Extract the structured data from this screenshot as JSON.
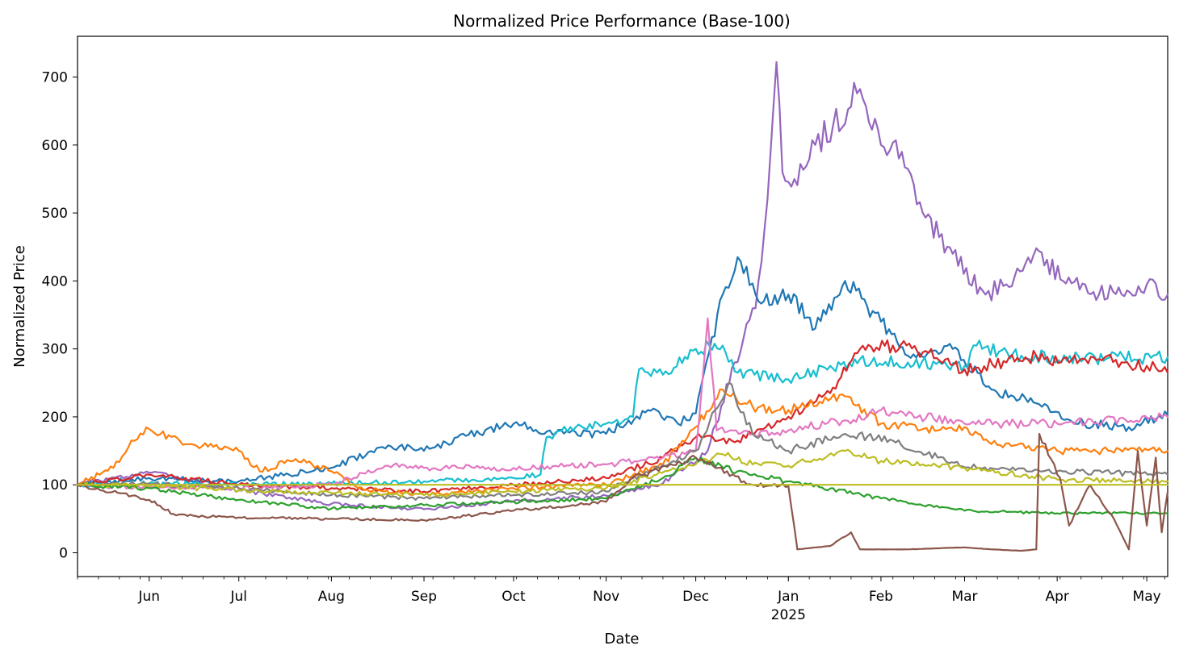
{
  "chart_data": {
    "type": "line",
    "title": "Normalized Price Performance (Base-100)",
    "xlabel": "Date",
    "ylabel": "Normalized Price",
    "x_range": [
      "2024-05-08",
      "2025-05-08"
    ],
    "ylim": [
      -35,
      760
    ],
    "y_ticks": [
      0,
      100,
      200,
      300,
      400,
      500,
      600,
      700
    ],
    "x_ticks": [
      {
        "date": "2024-06-01",
        "label": "Jun"
      },
      {
        "date": "2024-07-01",
        "label": "Jul"
      },
      {
        "date": "2024-08-01",
        "label": "Aug"
      },
      {
        "date": "2024-09-01",
        "label": "Sep"
      },
      {
        "date": "2024-10-01",
        "label": "Oct"
      },
      {
        "date": "2024-11-01",
        "label": "Nov"
      },
      {
        "date": "2024-12-01",
        "label": "Dec"
      },
      {
        "date": "2025-01-01",
        "label": "Jan",
        "sublabel": "2025"
      },
      {
        "date": "2025-02-01",
        "label": "Feb"
      },
      {
        "date": "2025-03-01",
        "label": "Mar"
      },
      {
        "date": "2025-04-01",
        "label": "Apr"
      },
      {
        "date": "2025-05-01",
        "label": "May"
      }
    ],
    "grid": false,
    "legend": "none",
    "series": [
      {
        "color": "#9467bd",
        "points": [
          [
            "2024-05-08",
            100
          ],
          [
            "2024-06-01",
            118
          ],
          [
            "2024-07-01",
            92
          ],
          [
            "2024-08-01",
            72
          ],
          [
            "2024-09-01",
            64
          ],
          [
            "2024-10-01",
            76
          ],
          [
            "2024-11-01",
            84
          ],
          [
            "2024-11-20",
            102
          ],
          [
            "2024-12-05",
            150
          ],
          [
            "2024-12-14",
            280
          ],
          [
            "2024-12-21",
            360
          ],
          [
            "2024-12-25",
            520
          ],
          [
            "2024-12-28",
            722
          ],
          [
            "2024-12-30",
            560
          ],
          [
            "2025-01-03",
            550
          ],
          [
            "2025-01-10",
            600
          ],
          [
            "2025-01-16",
            630
          ],
          [
            "2025-01-24",
            676
          ],
          [
            "2025-02-01",
            600
          ],
          [
            "2025-02-08",
            590
          ],
          [
            "2025-02-15",
            500
          ],
          [
            "2025-02-25",
            440
          ],
          [
            "2025-03-08",
            380
          ],
          [
            "2025-03-15",
            395
          ],
          [
            "2025-03-25",
            448
          ],
          [
            "2025-04-03",
            400
          ],
          [
            "2025-04-15",
            380
          ],
          [
            "2025-05-01",
            395
          ],
          [
            "2025-05-08",
            380
          ]
        ]
      },
      {
        "color": "#1f77b4",
        "points": [
          [
            "2024-05-08",
            100
          ],
          [
            "2024-06-01",
            110
          ],
          [
            "2024-07-01",
            105
          ],
          [
            "2024-08-01",
            125
          ],
          [
            "2024-08-20",
            158
          ],
          [
            "2024-09-01",
            150
          ],
          [
            "2024-09-15",
            172
          ],
          [
            "2024-10-01",
            190
          ],
          [
            "2024-10-15",
            175
          ],
          [
            "2024-11-01",
            175
          ],
          [
            "2024-11-15",
            210
          ],
          [
            "2024-11-25",
            190
          ],
          [
            "2024-12-01",
            205
          ],
          [
            "2024-12-10",
            380
          ],
          [
            "2024-12-15",
            435
          ],
          [
            "2024-12-22",
            370
          ],
          [
            "2025-01-01",
            380
          ],
          [
            "2025-01-10",
            330
          ],
          [
            "2025-01-20",
            400
          ],
          [
            "2025-02-01",
            340
          ],
          [
            "2025-02-10",
            290
          ],
          [
            "2025-02-25",
            300
          ],
          [
            "2025-03-10",
            240
          ],
          [
            "2025-03-25",
            220
          ],
          [
            "2025-04-10",
            190
          ],
          [
            "2025-04-25",
            185
          ],
          [
            "2025-05-08",
            203
          ]
        ]
      },
      {
        "color": "#17becf",
        "points": [
          [
            "2024-05-08",
            100
          ],
          [
            "2024-06-01",
            102
          ],
          [
            "2024-07-01",
            100
          ],
          [
            "2024-08-01",
            102
          ],
          [
            "2024-09-01",
            105
          ],
          [
            "2024-10-01",
            110
          ],
          [
            "2024-10-10",
            115
          ],
          [
            "2024-10-12",
            170
          ],
          [
            "2024-10-20",
            185
          ],
          [
            "2024-11-01",
            190
          ],
          [
            "2024-11-10",
            200
          ],
          [
            "2024-11-12",
            270
          ],
          [
            "2024-11-20",
            262
          ],
          [
            "2024-12-01",
            300
          ],
          [
            "2024-12-10",
            305
          ],
          [
            "2024-12-15",
            265
          ],
          [
            "2025-01-01",
            255
          ],
          [
            "2025-01-15",
            275
          ],
          [
            "2025-01-25",
            285
          ],
          [
            "2025-02-10",
            280
          ],
          [
            "2025-03-01",
            275
          ],
          [
            "2025-03-05",
            305
          ],
          [
            "2025-03-20",
            290
          ],
          [
            "2025-04-10",
            285
          ],
          [
            "2025-05-08",
            288
          ]
        ]
      },
      {
        "color": "#d62728",
        "points": [
          [
            "2024-05-08",
            100
          ],
          [
            "2024-06-01",
            115
          ],
          [
            "2024-07-01",
            100
          ],
          [
            "2024-08-01",
            95
          ],
          [
            "2024-09-01",
            90
          ],
          [
            "2024-10-01",
            100
          ],
          [
            "2024-11-01",
            110
          ],
          [
            "2024-11-20",
            140
          ],
          [
            "2024-12-01",
            170
          ],
          [
            "2024-12-15",
            165
          ],
          [
            "2025-01-01",
            200
          ],
          [
            "2025-01-15",
            235
          ],
          [
            "2025-01-25",
            300
          ],
          [
            "2025-02-05",
            305
          ],
          [
            "2025-02-15",
            295
          ],
          [
            "2025-03-01",
            270
          ],
          [
            "2025-03-15",
            280
          ],
          [
            "2025-03-25",
            290
          ],
          [
            "2025-04-05",
            280
          ],
          [
            "2025-04-15",
            285
          ],
          [
            "2025-05-01",
            275
          ],
          [
            "2025-05-08",
            265
          ]
        ]
      },
      {
        "color": "#ff7f0e",
        "points": [
          [
            "2024-05-08",
            100
          ],
          [
            "2024-05-20",
            125
          ],
          [
            "2024-05-26",
            165
          ],
          [
            "2024-06-01",
            182
          ],
          [
            "2024-06-15",
            160
          ],
          [
            "2024-07-01",
            150
          ],
          [
            "2024-07-08",
            120
          ],
          [
            "2024-07-20",
            138
          ],
          [
            "2024-08-01",
            120
          ],
          [
            "2024-08-10",
            95
          ],
          [
            "2024-09-01",
            85
          ],
          [
            "2024-10-01",
            95
          ],
          [
            "2024-11-01",
            100
          ],
          [
            "2024-11-20",
            130
          ],
          [
            "2024-12-01",
            185
          ],
          [
            "2024-12-10",
            240
          ],
          [
            "2024-12-20",
            215
          ],
          [
            "2025-01-01",
            210
          ],
          [
            "2025-01-20",
            230
          ],
          [
            "2025-02-01",
            190
          ],
          [
            "2025-02-20",
            180
          ],
          [
            "2025-03-01",
            185
          ],
          [
            "2025-03-10",
            160
          ],
          [
            "2025-04-01",
            150
          ],
          [
            "2025-05-08",
            150
          ]
        ]
      },
      {
        "color": "#e377c2",
        "points": [
          [
            "2024-05-08",
            100
          ],
          [
            "2024-06-01",
            96
          ],
          [
            "2024-07-01",
            95
          ],
          [
            "2024-08-01",
            100
          ],
          [
            "2024-08-20",
            128
          ],
          [
            "2024-09-01",
            125
          ],
          [
            "2024-10-01",
            125
          ],
          [
            "2024-11-01",
            130
          ],
          [
            "2024-11-20",
            140
          ],
          [
            "2024-12-01",
            150
          ],
          [
            "2024-12-05",
            345
          ],
          [
            "2024-12-08",
            180
          ],
          [
            "2024-12-20",
            175
          ],
          [
            "2025-01-01",
            180
          ],
          [
            "2025-01-20",
            195
          ],
          [
            "2025-02-01",
            210
          ],
          [
            "2025-03-01",
            190
          ],
          [
            "2025-04-01",
            190
          ],
          [
            "2025-05-08",
            200
          ]
        ]
      },
      {
        "color": "#7f7f7f",
        "points": [
          [
            "2024-05-08",
            100
          ],
          [
            "2024-06-01",
            102
          ],
          [
            "2024-07-01",
            95
          ],
          [
            "2024-08-01",
            85
          ],
          [
            "2024-09-01",
            80
          ],
          [
            "2024-10-01",
            85
          ],
          [
            "2024-11-01",
            90
          ],
          [
            "2024-12-01",
            150
          ],
          [
            "2024-12-12",
            250
          ],
          [
            "2024-12-20",
            175
          ],
          [
            "2025-01-01",
            150
          ],
          [
            "2025-01-20",
            175
          ],
          [
            "2025-02-05",
            165
          ],
          [
            "2025-02-20",
            140
          ],
          [
            "2025-03-05",
            125
          ],
          [
            "2025-04-01",
            120
          ],
          [
            "2025-05-08",
            115
          ]
        ]
      },
      {
        "color": "#bcbd22",
        "points": [
          [
            "2024-05-08",
            100
          ],
          [
            "2024-06-01",
            98
          ],
          [
            "2024-07-01",
            92
          ],
          [
            "2024-08-01",
            88
          ],
          [
            "2024-09-01",
            85
          ],
          [
            "2024-10-01",
            90
          ],
          [
            "2024-11-01",
            95
          ],
          [
            "2024-12-01",
            130
          ],
          [
            "2024-12-10",
            145
          ],
          [
            "2024-12-20",
            130
          ],
          [
            "2025-01-01",
            128
          ],
          [
            "2025-01-20",
            150
          ],
          [
            "2025-02-01",
            135
          ],
          [
            "2025-02-15",
            130
          ],
          [
            "2025-03-01",
            125
          ],
          [
            "2025-04-01",
            108
          ],
          [
            "2025-05-08",
            105
          ]
        ]
      },
      {
        "color": "#2ca02c",
        "points": [
          [
            "2024-05-08",
            100
          ],
          [
            "2024-06-01",
            95
          ],
          [
            "2024-07-01",
            78
          ],
          [
            "2024-08-01",
            65
          ],
          [
            "2024-09-01",
            70
          ],
          [
            "2024-10-01",
            75
          ],
          [
            "2024-11-01",
            80
          ],
          [
            "2024-11-20",
            110
          ],
          [
            "2024-12-01",
            140
          ],
          [
            "2024-12-15",
            120
          ],
          [
            "2025-01-01",
            105
          ],
          [
            "2025-02-01",
            80
          ],
          [
            "2025-03-01",
            62
          ],
          [
            "2025-04-01",
            58
          ],
          [
            "2025-05-08",
            58
          ]
        ]
      },
      {
        "color": "#8c564b",
        "points": [
          [
            "2024-05-08",
            100
          ],
          [
            "2024-06-01",
            78
          ],
          [
            "2024-06-10",
            55
          ],
          [
            "2024-07-01",
            52
          ],
          [
            "2024-08-01",
            50
          ],
          [
            "2024-09-01",
            48
          ],
          [
            "2024-10-01",
            62
          ],
          [
            "2024-11-01",
            75
          ],
          [
            "2024-11-10",
            110
          ],
          [
            "2024-12-01",
            140
          ],
          [
            "2024-12-20",
            100
          ],
          [
            "2025-01-01",
            98
          ],
          [
            "2025-01-04",
            5
          ],
          [
            "2025-01-15",
            10
          ],
          [
            "2025-01-22",
            30
          ],
          [
            "2025-01-25",
            5
          ],
          [
            "2025-02-10",
            5
          ],
          [
            "2025-03-01",
            8
          ],
          [
            "2025-03-10",
            5
          ],
          [
            "2025-03-20",
            3
          ],
          [
            "2025-03-25",
            5
          ],
          [
            "2025-03-26",
            175
          ],
          [
            "2025-04-02",
            110
          ],
          [
            "2025-04-05",
            40
          ],
          [
            "2025-04-12",
            100
          ],
          [
            "2025-04-20",
            50
          ],
          [
            "2025-04-25",
            5
          ],
          [
            "2025-04-28",
            150
          ],
          [
            "2025-05-01",
            40
          ],
          [
            "2025-05-04",
            140
          ],
          [
            "2025-05-06",
            30
          ],
          [
            "2025-05-08",
            90
          ]
        ]
      },
      {
        "color": "#bcbd22",
        "points": [
          [
            "2024-05-08",
            100
          ],
          [
            "2025-05-08",
            100
          ]
        ]
      }
    ]
  }
}
